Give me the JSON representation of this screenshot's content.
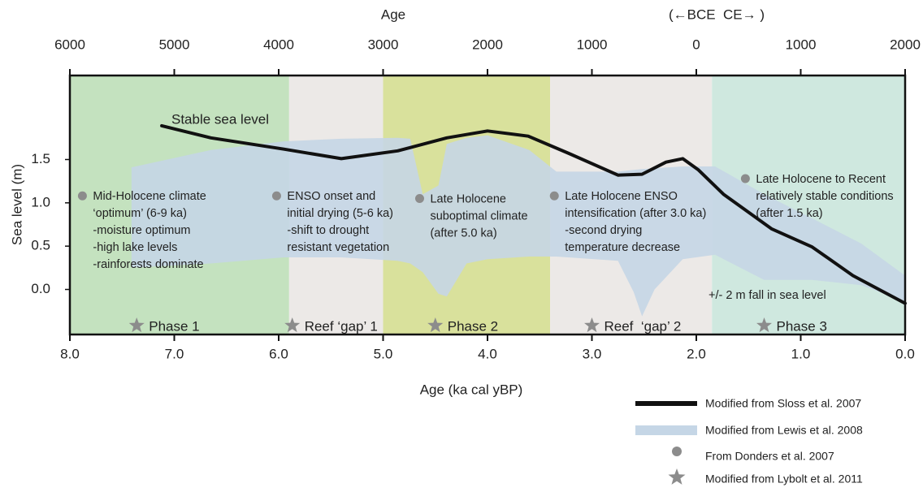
{
  "chart_data": {
    "type": "line",
    "xlabel": "Age (ka cal yBP)",
    "ylabel": "Sea level (m)",
    "x2label": "Age",
    "x2note": "(←BCE  CE→ )",
    "xlim": [
      8.0,
      0.0
    ],
    "x2lim": [
      -6000,
      2000
    ],
    "ylim": [
      -0.52,
      2.47
    ],
    "xticks": [
      {
        "value": 8.0,
        "label": "8.0"
      },
      {
        "value": 7.0,
        "label": "7.0"
      },
      {
        "value": 6.0,
        "label": "6.0"
      },
      {
        "value": 5.0,
        "label": "5.0"
      },
      {
        "value": 4.0,
        "label": "4.0"
      },
      {
        "value": 3.0,
        "label": "3.0"
      },
      {
        "value": 2.0,
        "label": "2.0"
      },
      {
        "value": 1.0,
        "label": "1.0"
      },
      {
        "value": 0.0,
        "label": "0.0"
      }
    ],
    "x2ticks": [
      {
        "value": -6000,
        "label": "6000"
      },
      {
        "value": -5000,
        "label": "5000"
      },
      {
        "value": -4000,
        "label": "4000"
      },
      {
        "value": -3000,
        "label": "3000"
      },
      {
        "value": -2000,
        "label": "2000"
      },
      {
        "value": -1000,
        "label": "1000"
      },
      0,
      1000,
      2000
    ],
    "yticks": [
      {
        "value": 0.0,
        "label": "0.0"
      },
      {
        "value": 0.5,
        "label": "0.5"
      },
      {
        "value": 1.0,
        "label": "1.0"
      },
      {
        "value": 1.5,
        "label": "1.5"
      }
    ],
    "periods": [
      {
        "from": 8.0,
        "to": 5.9,
        "color": "#c4e2bf"
      },
      {
        "from": 5.9,
        "to": 5.0,
        "color": "#ece9e7"
      },
      {
        "from": 5.0,
        "to": 3.4,
        "color": "#d9e19c"
      },
      {
        "from": 3.4,
        "to": 1.85,
        "color": "#ece9e7"
      },
      {
        "from": 1.85,
        "to": 0.0,
        "color": "#cfe8df"
      }
    ],
    "series": [
      {
        "name": "Modified from Sloss et al. 2007",
        "color": "#111111",
        "type": "line",
        "x": [
          7.12,
          6.65,
          5.95,
          5.4,
          4.86,
          4.39,
          4.0,
          3.61,
          3.22,
          2.75,
          2.52,
          2.29,
          2.13,
          1.98,
          1.74,
          1.28,
          0.89,
          0.5,
          0.0
        ],
        "values": [
          1.89,
          1.75,
          1.62,
          1.51,
          1.6,
          1.75,
          1.83,
          1.77,
          1.57,
          1.32,
          1.33,
          1.47,
          1.51,
          1.38,
          1.1,
          0.7,
          0.49,
          0.16,
          -0.16
        ]
      },
      {
        "name": "Modified from Lewis et al. 2008",
        "color": "#c5d6e6",
        "type": "band",
        "x": [
          7.41,
          6.65,
          5.95,
          5.4,
          4.86,
          4.74,
          4.62,
          4.47,
          4.39,
          4.2,
          4.0,
          3.6,
          3.34,
          2.75,
          2.6,
          2.52,
          2.4,
          2.13,
          1.82,
          1.35,
          0.89,
          0.42,
          0.0
        ],
        "upper": [
          1.41,
          1.61,
          1.71,
          1.74,
          1.75,
          1.74,
          1.1,
          1.2,
          1.68,
          1.75,
          1.78,
          1.61,
          1.36,
          1.36,
          1.38,
          1.39,
          1.4,
          1.42,
          1.42,
          1.1,
          0.82,
          0.53,
          0.16
        ],
        "lower": [
          0.25,
          0.3,
          0.37,
          0.37,
          0.33,
          0.3,
          0.2,
          -0.05,
          -0.08,
          0.3,
          0.35,
          0.38,
          0.38,
          0.33,
          -0.03,
          -0.31,
          0.0,
          0.35,
          0.4,
          0.11,
          0.11,
          0.05,
          -0.14
        ]
      },
      {
        "name": "From Donders et al. 2007",
        "color": "#8c8c8c",
        "type": "scatter",
        "x": [
          7.88,
          6.02,
          4.65,
          3.36,
          1.53
        ],
        "values": [
          1.08,
          1.08,
          1.05,
          1.08,
          1.28
        ],
        "point_labels": [
          [
            "Mid-Holocene climate",
            "‘optimum’ (6-9 ka)",
            "-moisture optimum",
            "-high lake levels",
            "-rainforests dominate"
          ],
          [
            "ENSO onset and",
            "initial drying (5-6 ka)",
            "-shift to drought",
            "resistant vegetation"
          ],
          [
            "Late Holocene",
            "suboptimal climate",
            "(after 5.0 ka)"
          ],
          [
            "Late Holocene ENSO",
            "intensification (after 3.0 ka)",
            "-second drying",
            "temperature decrease"
          ],
          [
            "Late Holocene to Recent",
            "relatively stable conditions",
            "(after 1.5 ka)"
          ]
        ]
      },
      {
        "name": "Modified from Lybolt et al. 2011",
        "color": "#8c8c8c",
        "type": "marker",
        "x": [
          7.36,
          5.87,
          4.5,
          3.0,
          1.35
        ],
        "labels": [
          "Phase 1",
          "Reef ‘gap’ 1",
          "Phase 2",
          "Reef  ‘gap’ 2",
          "Phase 3"
        ]
      }
    ],
    "annotations": [
      "Stable sea level",
      "+/- 2 m fall in sea level"
    ]
  }
}
